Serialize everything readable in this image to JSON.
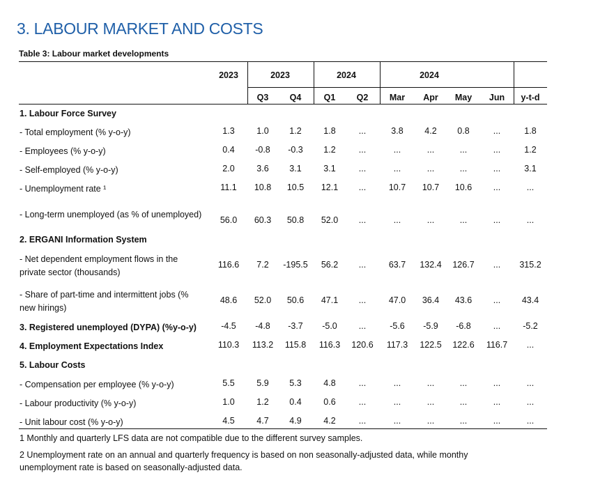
{
  "section_title": "3. LABOUR MARKET AND COSTS",
  "table_caption": "Table 3: Labour market developments",
  "header_top": {
    "c2023a": "2023",
    "c2023q": "2023",
    "c2024q": "2024",
    "c2024m": "2024"
  },
  "header_sub": {
    "q3": "Q3",
    "q4": "Q4",
    "q1": "Q1",
    "q2": "Q2",
    "mar": "Mar",
    "apr": "Apr",
    "may": "May",
    "jun": "Jun",
    "ytd": "y-t-d"
  },
  "rows": [
    {
      "label": "1. Labour Force Survey",
      "bold": true,
      "values": []
    },
    {
      "label": "- Total employment (% y-o-y)",
      "values": [
        "1.3",
        "1.0",
        "1.2",
        "1.8",
        "...",
        "3.8",
        "4.2",
        "0.8",
        "...",
        "1.8"
      ]
    },
    {
      "label": "- Employees (% y-o-y)",
      "values": [
        "0.4",
        "-0.8",
        "-0.3",
        "1.2",
        "...",
        "...",
        "...",
        "...",
        "...",
        "1.2"
      ]
    },
    {
      "label": "- Self-employed (% y-o-y)",
      "values": [
        "2.0",
        "3.6",
        "3.1",
        "3.1",
        "...",
        "...",
        "...",
        "...",
        "...",
        "3.1"
      ]
    },
    {
      "label": "- Unemployment rate ¹",
      "values": [
        "11.1",
        "10.8",
        "10.5",
        "12.1",
        "...",
        "10.7",
        "10.7",
        "10.6",
        "...",
        "..."
      ]
    },
    {
      "label": "- Long-term unemployed (as % of unemployed)",
      "values": [
        "56.0",
        "60.3",
        "50.8",
        "52.0",
        "...",
        "...",
        "...",
        "...",
        "...",
        "..."
      ]
    },
    {
      "label": "2. ERGANI Information System",
      "bold": true,
      "values": []
    },
    {
      "label": "- Net dependent employment flows in the private sector (thousands)",
      "values": [
        "116.6",
        "7.2",
        "-195.5",
        "56.2",
        "...",
        "63.7",
        "132.4",
        "126.7",
        "...",
        "315.2"
      ]
    },
    {
      "label": "- Share of part-time and intermittent jobs (% new hirings)",
      "values": [
        "48.6",
        "52.0",
        "50.6",
        "47.1",
        "...",
        "47.0",
        "36.4",
        "43.6",
        "...",
        "43.4"
      ]
    },
    {
      "label": "3. Registered unemployed (DYPA) (%y-o-y)",
      "bold": true,
      "values": [
        "-4.5",
        "-4.8",
        "-3.7",
        "-5.0",
        "...",
        "-5.6",
        "-5.9",
        "-6.8",
        "...",
        "-5.2"
      ]
    },
    {
      "label": "4. Employment Expectations Index",
      "bold": true,
      "values": [
        "110.3",
        "113.2",
        "115.8",
        "116.3",
        "120.6",
        "117.3",
        "122.5",
        "122.6",
        "116.7",
        "..."
      ]
    },
    {
      "label": "5. Labour Costs",
      "bold": true,
      "values": []
    },
    {
      "label": "- Compensation per employee (% y-o-y)",
      "values": [
        "5.5",
        "5.9",
        "5.3",
        "4.8",
        "...",
        "...",
        "...",
        "...",
        "...",
        "..."
      ]
    },
    {
      "label": "- Labour productivity (% y-o-y)",
      "values": [
        "1.0",
        "1.2",
        "0.4",
        "0.6",
        "...",
        "...",
        "...",
        "...",
        "...",
        "..."
      ]
    },
    {
      "label": "- Unit labour cost (% y-o-y)",
      "values": [
        "4.5",
        "4.7",
        "4.9",
        "4.2",
        "...",
        "...",
        "...",
        "...",
        "...",
        "..."
      ]
    }
  ],
  "footnotes": [
    "1 Monthly and quarterly LFS data are not compatible due to the different survey samples.",
    "2 Unemployment rate on an annual and quarterly frequency is based on non seasonally-adjusted data, while monthy unemployment rate is based on seasonally-adjusted data."
  ]
}
